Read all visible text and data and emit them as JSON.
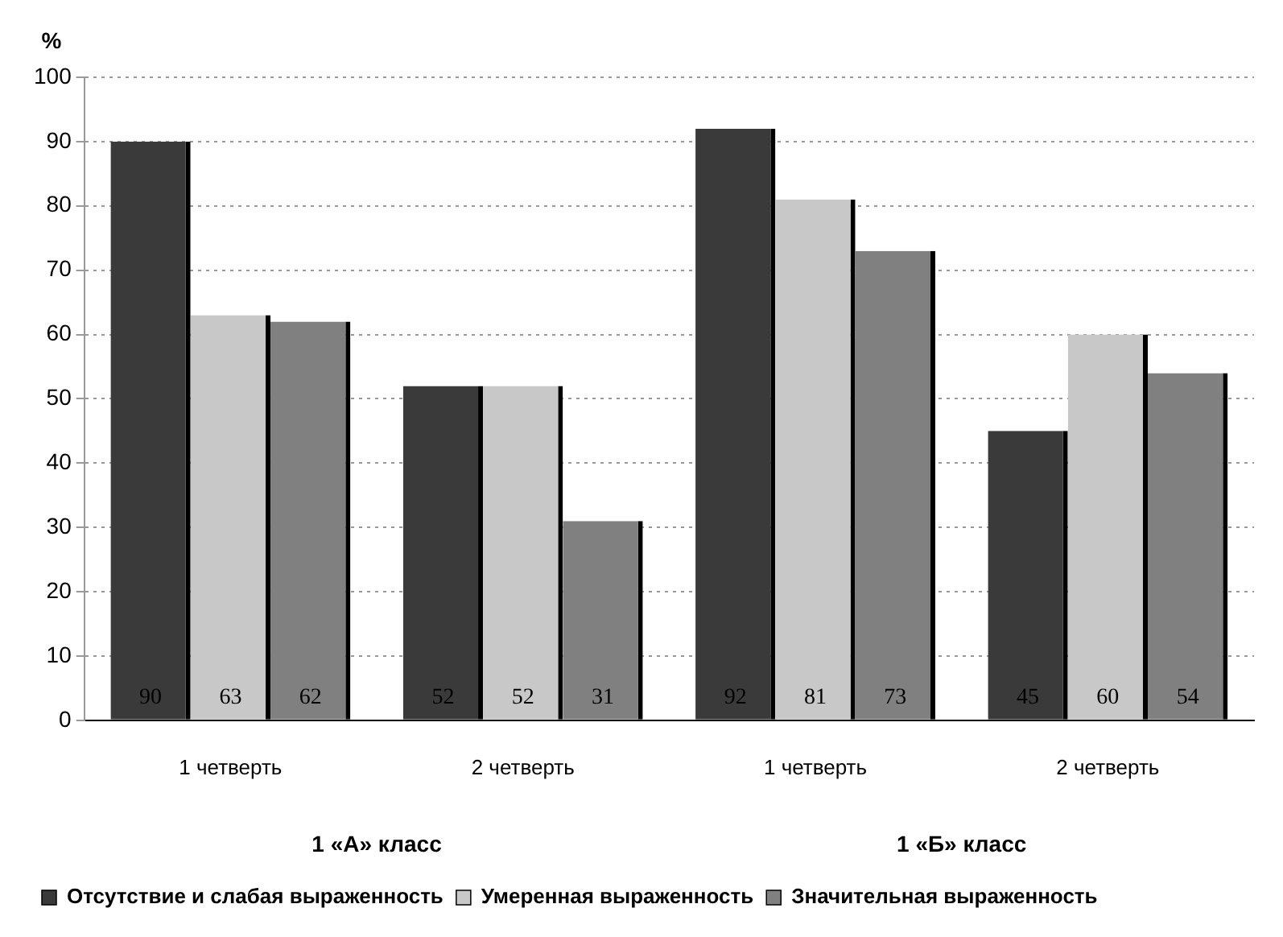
{
  "chart_data": {
    "type": "bar",
    "ylabel": "%",
    "categories": [
      "1 четверть",
      "2 четверть",
      "1 четверть",
      "2 четверть"
    ],
    "series": [
      {
        "name": "Отсутствие и слабая выраженность",
        "color": "#3a3a3a",
        "values": [
          90,
          52,
          92,
          45
        ]
      },
      {
        "name": "Умеренная выраженность",
        "color": "#c8c8c8",
        "values": [
          63,
          52,
          81,
          60
        ]
      },
      {
        "name": "Значительная выраженность",
        "color": "#808080",
        "values": [
          62,
          31,
          73,
          54
        ]
      }
    ],
    "ylim": [
      0,
      100
    ],
    "yticks": [
      0,
      10,
      20,
      30,
      40,
      50,
      60,
      70,
      80,
      90,
      100
    ],
    "grid": "y",
    "legend": "bottom",
    "data_labels": true,
    "annotations": [
      "1 «А» класс",
      "1 «Б» класс"
    ]
  }
}
